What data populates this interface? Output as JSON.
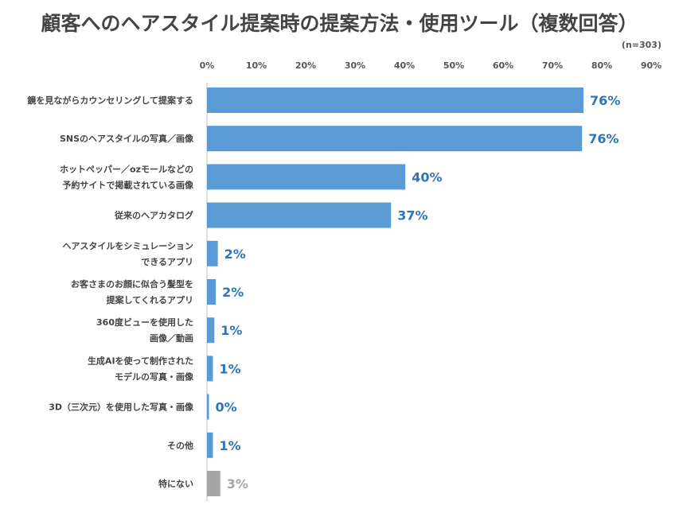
{
  "title": "顧客へのヘアスタイル提案時の提案方法・使用ツール（複数回答）",
  "sample_note": "(n=303)",
  "colors": {
    "bar": "#5b9bd5",
    "bar_other": "#a6a6a6",
    "label": "#2e75b6",
    "label_other": "#a6a6a6"
  },
  "chart_data": {
    "type": "bar",
    "orientation": "horizontal",
    "xlim": [
      0,
      90
    ],
    "x_ticks": [
      "0%",
      "10%",
      "20%",
      "30%",
      "40%",
      "50%",
      "60%",
      "70%",
      "80%",
      "90%"
    ],
    "tick_values": [
      0,
      10,
      20,
      30,
      40,
      50,
      60,
      70,
      80,
      90
    ],
    "grid": false,
    "categories": [
      [
        "鏡を見ながらカウンセリングして提案する"
      ],
      [
        "SNSのヘアスタイルの写真／画像"
      ],
      [
        "ホットペッパー／ozモールなどの",
        "予約サイトで掲載されている画像"
      ],
      [
        "従来のヘアカタログ"
      ],
      [
        "ヘアスタイルをシミュレーション",
        "できるアプリ"
      ],
      [
        "お客さまのお顔に似合う髪型を",
        "提案してくれるアプリ"
      ],
      [
        "360度ビューを使用した",
        "画像／動画"
      ],
      [
        "生成AIを使って制作された",
        "モデルの写真・画像"
      ],
      [
        "3D（三次元）を使用した写真・画像"
      ],
      [
        "その他"
      ],
      [
        "特にない"
      ]
    ],
    "values": [
      76,
      76,
      40,
      37,
      2,
      2,
      1,
      1,
      0,
      1,
      3
    ],
    "value_labels": [
      "76%",
      "76%",
      "40%",
      "37%",
      "2%",
      "2%",
      "1%",
      "1%",
      "0%",
      "1%",
      "3%"
    ],
    "bar_widths_pct": [
      76.3,
      76.0,
      40.2,
      37.3,
      2.2,
      1.8,
      1.5,
      1.2,
      0.4,
      1.2,
      2.7
    ],
    "highlight_last": true
  }
}
